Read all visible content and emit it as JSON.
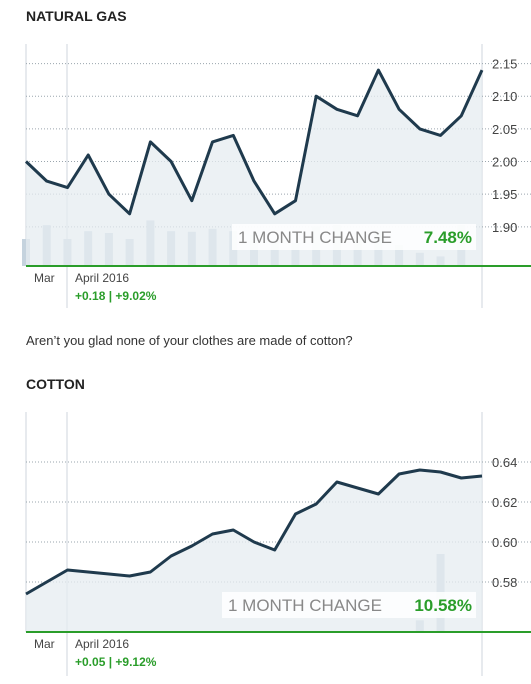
{
  "sections": [
    {
      "title": "NATURAL GAS"
    },
    {
      "title": "COTTON"
    }
  ],
  "caption": "Aren’t you glad none of your clothes are made of cotton?",
  "chart_data": [
    {
      "type": "line",
      "title": "NATURAL GAS",
      "x_labels": [
        "Mar",
        "April 2016"
      ],
      "period_change": "+0.18 | +9.02%",
      "month_change_label": "1 MONTH CHANGE",
      "month_change_value": "7.48%",
      "ylim": [
        1.84,
        2.18
      ],
      "y_ticks": [
        2.15,
        2.1,
        2.05,
        2.0,
        1.95,
        1.9
      ],
      "y_tick_labels": [
        "2.15",
        "2.10",
        "2.05",
        "2.00",
        "1.95",
        "1.90"
      ],
      "grid": true,
      "colors": {
        "line": "#1f3a4d",
        "area": "#e6ecf0",
        "volume": "#c5d3de",
        "baseline": "#2a9d2a"
      },
      "series": [
        {
          "values": [
            2.0,
            1.97,
            1.96,
            2.01,
            1.95,
            1.92,
            2.03,
            2.0,
            1.94,
            2.03,
            2.04,
            1.97,
            1.92,
            1.94,
            2.1,
            2.08,
            2.07,
            2.14,
            2.08,
            2.05,
            2.04,
            2.07,
            2.14
          ]
        }
      ],
      "volume": [
        0.45,
        0.68,
        0.45,
        0.58,
        0.55,
        0.45,
        0.76,
        0.58,
        0.57,
        0.62,
        0.58,
        0.52,
        0.42,
        0.38,
        0.66,
        0.68,
        0.55,
        0.58,
        0.35,
        0.22,
        0.16,
        0.68,
        0.0
      ]
    },
    {
      "type": "line",
      "title": "COTTON",
      "x_labels": [
        "Mar",
        "April 2016"
      ],
      "period_change": "+0.05 | +9.12%",
      "month_change_label": "1 MONTH CHANGE",
      "month_change_value": "10.58%",
      "ylim": [
        0.555,
        0.665
      ],
      "y_ticks": [
        0.64,
        0.62,
        0.6,
        0.58
      ],
      "y_tick_labels": [
        "0.64",
        "0.62",
        "0.60",
        "0.58"
      ],
      "grid": true,
      "colors": {
        "line": "#1f3a4d",
        "area": "#e6ecf0",
        "volume": "#c5d3de",
        "baseline": "#2a9d2a"
      },
      "series": [
        {
          "values": [
            0.574,
            0.58,
            0.586,
            0.585,
            0.584,
            0.583,
            0.585,
            0.593,
            0.598,
            0.604,
            0.606,
            0.6,
            0.596,
            0.614,
            0.619,
            0.63,
            0.627,
            0.624,
            0.634,
            0.636,
            0.635,
            0.632,
            0.633
          ]
        }
      ],
      "volume": [
        0,
        0,
        0,
        0,
        0,
        0,
        0,
        0,
        0,
        0,
        0,
        0,
        0,
        0,
        0,
        0,
        0,
        0,
        0,
        0.15,
        1.0,
        0,
        0
      ]
    }
  ]
}
